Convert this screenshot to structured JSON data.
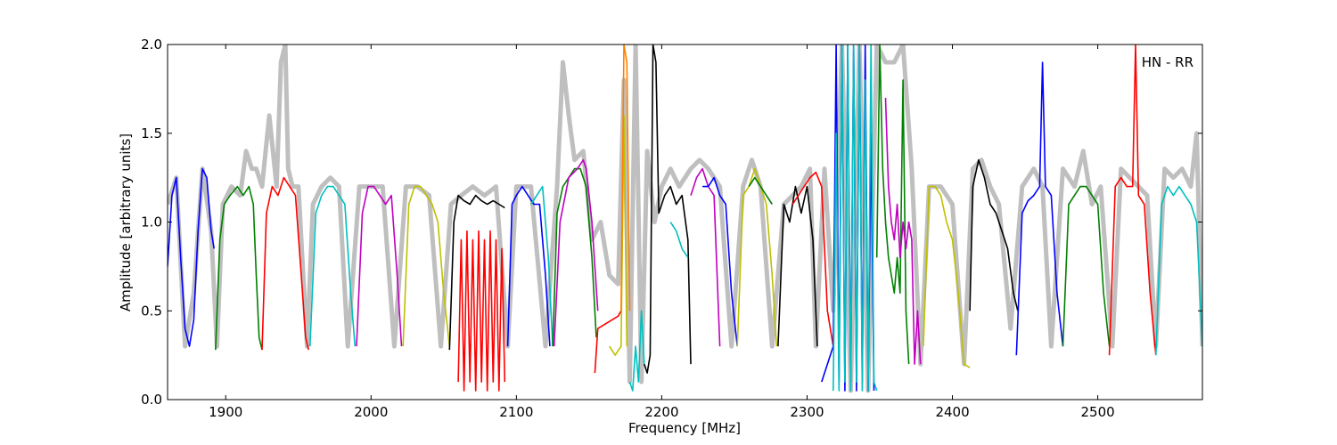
{
  "chart_data": {
    "type": "line",
    "xlabel": "Frequency [MHz]",
    "ylabel": "Amplitude [arbitrary units]",
    "annotation": "HN - RR",
    "xlim": [
      1860,
      2572
    ],
    "ylim": [
      0,
      2.0
    ],
    "xticks": [
      1900,
      2000,
      2100,
      2200,
      2300,
      2400,
      2500
    ],
    "yticks": [
      0.0,
      0.5,
      1.0,
      1.5,
      2.0
    ],
    "grid": false,
    "background_series": {
      "color": "#bfbfbf",
      "x": [
        1860,
        1866,
        1872,
        1878,
        1884,
        1890,
        1894,
        1898,
        1904,
        1910,
        1914,
        1918,
        1921,
        1925,
        1930,
        1935,
        1938,
        1941,
        1943,
        1946,
        1950,
        1956,
        1960,
        1966,
        1972,
        1978,
        1984,
        1992,
        2000,
        2008,
        2016,
        2024,
        2032,
        2040,
        2048,
        2055,
        2062,
        2070,
        2078,
        2086,
        2094,
        2100,
        2110,
        2120,
        2128,
        2132,
        2136,
        2140,
        2146,
        2152,
        2158,
        2164,
        2170,
        2174,
        2178,
        2182,
        2186,
        2190,
        2195,
        2200,
        2206,
        2212,
        2220,
        2226,
        2232,
        2240,
        2248,
        2256,
        2262,
        2268,
        2276,
        2284,
        2290,
        2296,
        2302,
        2306,
        2312,
        2318,
        2324,
        2330,
        2336,
        2342,
        2348,
        2354,
        2360,
        2366,
        2372,
        2378,
        2384,
        2392,
        2400,
        2408,
        2414,
        2420,
        2426,
        2432,
        2440,
        2448,
        2456,
        2462,
        2468,
        2476,
        2484,
        2490,
        2496,
        2502,
        2510,
        2516,
        2522,
        2528,
        2534,
        2540,
        2546,
        2552,
        2558,
        2564,
        2568,
        2572
      ],
      "y": [
        1.1,
        1.25,
        0.3,
        0.6,
        1.3,
        0.95,
        0.3,
        1.1,
        1.2,
        1.15,
        1.4,
        1.3,
        1.3,
        1.2,
        1.6,
        1.2,
        1.9,
        2.0,
        1.3,
        1.2,
        1.2,
        0.3,
        1.1,
        1.2,
        1.25,
        1.2,
        0.3,
        1.2,
        1.2,
        1.2,
        0.3,
        1.2,
        1.2,
        1.15,
        0.3,
        1.1,
        1.15,
        1.2,
        1.15,
        1.2,
        0.3,
        1.2,
        1.2,
        0.3,
        1.2,
        1.9,
        1.6,
        1.35,
        1.4,
        0.9,
        1.0,
        0.7,
        0.65,
        1.8,
        0.1,
        2.0,
        0.1,
        1.4,
        1.0,
        1.2,
        1.3,
        1.2,
        1.3,
        1.35,
        1.3,
        1.2,
        0.3,
        1.2,
        1.35,
        1.2,
        0.3,
        1.1,
        1.15,
        1.2,
        1.3,
        0.3,
        1.3,
        0.5,
        2.0,
        0.05,
        2.0,
        0.05,
        2.0,
        1.9,
        1.9,
        2.0,
        1.3,
        0.2,
        1.2,
        1.2,
        1.1,
        0.2,
        1.3,
        1.35,
        1.2,
        1.1,
        0.4,
        1.2,
        1.3,
        1.2,
        0.3,
        1.3,
        1.2,
        1.4,
        1.1,
        1.2,
        0.3,
        1.3,
        1.25,
        1.2,
        1.15,
        0.3,
        1.3,
        1.25,
        1.3,
        1.2,
        1.5,
        0.3
      ]
    },
    "series": [
      {
        "color": "#0000ff",
        "x": [
          1860,
          1863,
          1866,
          1869,
          1872,
          1875,
          1878,
          1881,
          1884,
          1887,
          1890,
          1892
        ],
        "y": [
          0.75,
          1.15,
          1.25,
          0.8,
          0.4,
          0.3,
          0.45,
          0.95,
          1.3,
          1.25,
          0.95,
          0.85
        ]
      },
      {
        "color": "#008000",
        "x": [
          1893,
          1896,
          1899,
          1903,
          1908,
          1912,
          1916,
          1919,
          1921,
          1923,
          1925
        ],
        "y": [
          0.28,
          0.9,
          1.1,
          1.15,
          1.2,
          1.15,
          1.2,
          1.1,
          0.7,
          0.35,
          0.28
        ]
      },
      {
        "color": "#ff0000",
        "x": [
          1925,
          1928,
          1932,
          1936,
          1940,
          1944,
          1948,
          1952,
          1955,
          1957
        ],
        "y": [
          0.28,
          1.05,
          1.2,
          1.15,
          1.25,
          1.2,
          1.15,
          0.7,
          0.35,
          0.28
        ]
      },
      {
        "color": "#00bfbf",
        "x": [
          1958,
          1962,
          1966,
          1970,
          1974,
          1978,
          1982,
          1986,
          1989
        ],
        "y": [
          0.3,
          1.05,
          1.15,
          1.2,
          1.2,
          1.15,
          1.1,
          0.6,
          0.3
        ]
      },
      {
        "color": "#bf00bf",
        "x": [
          1990,
          1994,
          1998,
          2002,
          2006,
          2010,
          2014,
          2018,
          2021
        ],
        "y": [
          0.3,
          1.05,
          1.2,
          1.2,
          1.15,
          1.1,
          1.15,
          0.7,
          0.3
        ]
      },
      {
        "color": "#bfbf00",
        "x": [
          2022,
          2026,
          2030,
          2034,
          2038,
          2042,
          2046,
          2050,
          2054
        ],
        "y": [
          0.3,
          1.1,
          1.2,
          1.2,
          1.15,
          1.1,
          1.0,
          0.6,
          0.3
        ]
      },
      {
        "color": "#000000",
        "x": [
          2054,
          2057,
          2060,
          2064,
          2068,
          2072,
          2076,
          2080,
          2084,
          2088,
          2092
        ],
        "y": [
          0.28,
          1.0,
          1.15,
          1.12,
          1.1,
          1.15,
          1.12,
          1.1,
          1.12,
          1.1,
          1.08
        ]
      },
      {
        "color": "#ff0000",
        "x": [
          2060,
          2062,
          2064,
          2066,
          2068,
          2070,
          2072,
          2074,
          2076,
          2078,
          2080,
          2082,
          2084,
          2086,
          2088,
          2090,
          2092
        ],
        "y": [
          0.1,
          0.9,
          0.05,
          0.95,
          0.1,
          0.9,
          0.05,
          0.95,
          0.1,
          0.9,
          0.05,
          0.95,
          0.1,
          0.9,
          0.05,
          0.85,
          0.1
        ]
      },
      {
        "color": "#0000ff",
        "x": [
          2094,
          2097,
          2100,
          2104,
          2108,
          2112,
          2116,
          2120,
          2123
        ],
        "y": [
          0.3,
          1.1,
          1.15,
          1.2,
          1.15,
          1.1,
          1.1,
          0.7,
          0.3
        ]
      },
      {
        "color": "#00bfbf",
        "x": [
          2110,
          2114,
          2118,
          2122,
          2125
        ],
        "y": [
          1.1,
          1.15,
          1.2,
          0.8,
          0.3
        ]
      },
      {
        "color": "#008000",
        "x": [
          2125,
          2128,
          2132,
          2136,
          2140,
          2144,
          2148,
          2152,
          2155
        ],
        "y": [
          0.3,
          1.05,
          1.2,
          1.25,
          1.3,
          1.3,
          1.2,
          0.8,
          0.35
        ]
      },
      {
        "color": "#bf00bf",
        "x": [
          2126,
          2130,
          2136,
          2142,
          2146,
          2148,
          2152,
          2156
        ],
        "y": [
          0.3,
          1.0,
          1.25,
          1.3,
          1.35,
          1.3,
          1.0,
          0.5
        ]
      },
      {
        "color": "#ff0000",
        "x": [
          2154,
          2156,
          2160,
          2166,
          2170,
          2172
        ],
        "y": [
          0.15,
          0.4,
          0.42,
          0.45,
          0.47,
          0.5
        ]
      },
      {
        "color": "#bfbf00",
        "x": [
          2164,
          2168,
          2172,
          2174,
          2176
        ],
        "y": [
          0.3,
          0.25,
          0.3,
          1.6,
          0.3
        ]
      },
      {
        "color": "#ff8000",
        "x": [
          2172,
          2174,
          2176,
          2178
        ],
        "y": [
          0.5,
          2.0,
          1.9,
          0.5
        ]
      },
      {
        "color": "#00bfbf",
        "x": [
          2178,
          2180,
          2182,
          2184,
          2186,
          2188
        ],
        "y": [
          0.1,
          0.05,
          0.3,
          0.1,
          0.5,
          0.2
        ]
      },
      {
        "color": "#000000",
        "x": [
          2188,
          2190,
          2192,
          2194,
          2196,
          2198,
          2202,
          2206,
          2210,
          2214,
          2218,
          2220
        ],
        "y": [
          0.2,
          0.15,
          0.25,
          2.0,
          1.9,
          1.05,
          1.15,
          1.2,
          1.1,
          1.15,
          0.9,
          0.2
        ]
      },
      {
        "color": "#00bfbf",
        "x": [
          2206,
          2210,
          2214,
          2218
        ],
        "y": [
          1.0,
          0.95,
          0.85,
          0.8
        ]
      },
      {
        "color": "#bf00bf",
        "x": [
          2220,
          2224,
          2228,
          2232,
          2236,
          2240
        ],
        "y": [
          1.15,
          1.25,
          1.3,
          1.2,
          1.15,
          0.3
        ]
      },
      {
        "color": "#0000ff",
        "x": [
          2228,
          2232,
          2236,
          2240,
          2244,
          2248,
          2252
        ],
        "y": [
          1.2,
          1.2,
          1.25,
          1.15,
          1.1,
          0.6,
          0.3
        ]
      },
      {
        "color": "#bfbf00",
        "x": [
          2252,
          2256,
          2260,
          2264,
          2268,
          2272,
          2276,
          2279
        ],
        "y": [
          0.3,
          1.15,
          1.2,
          1.3,
          1.2,
          1.1,
          0.7,
          0.3
        ]
      },
      {
        "color": "#008000",
        "x": [
          2260,
          2264,
          2268,
          2272,
          2276
        ],
        "y": [
          1.2,
          1.25,
          1.2,
          1.15,
          1.1
        ]
      },
      {
        "color": "#000000",
        "x": [
          2280,
          2284,
          2288,
          2292,
          2296,
          2300,
          2304,
          2307
        ],
        "y": [
          0.3,
          1.1,
          1.0,
          1.2,
          1.05,
          1.2,
          0.9,
          0.3
        ]
      },
      {
        "color": "#ff0000",
        "x": [
          2290,
          2294,
          2298,
          2302,
          2306,
          2310,
          2314,
          2318
        ],
        "y": [
          1.1,
          1.15,
          1.2,
          1.25,
          1.28,
          1.2,
          0.5,
          0.3
        ]
      },
      {
        "color": "#0000ff",
        "x": [
          2310,
          2314,
          2318,
          2320,
          2322,
          2324,
          2326,
          2328,
          2330,
          2332,
          2334,
          2336,
          2338,
          2340,
          2342,
          2344,
          2346
        ],
        "y": [
          0.1,
          0.2,
          0.3,
          2.0,
          0.1,
          2.0,
          0.05,
          2.0,
          0.1,
          2.0,
          0.05,
          2.0,
          0.1,
          2.0,
          0.05,
          1.5,
          0.05
        ]
      },
      {
        "color": "#00bfbf",
        "x": [
          2318,
          2320,
          2322,
          2324,
          2326,
          2328,
          2330,
          2332,
          2334,
          2336,
          2338,
          2340,
          2342,
          2344,
          2346,
          2348
        ],
        "y": [
          0.05,
          1.5,
          0.05,
          2.0,
          0.1,
          2.0,
          0.05,
          2.0,
          0.1,
          2.0,
          0.05,
          1.8,
          0.05,
          2.0,
          0.1,
          0.05
        ]
      },
      {
        "color": "#008000",
        "x": [
          2348,
          2350,
          2352,
          2354,
          2356,
          2358,
          2360,
          2362,
          2364,
          2366,
          2368,
          2370
        ],
        "y": [
          0.8,
          2.0,
          1.3,
          1.0,
          0.8,
          0.7,
          0.6,
          0.8,
          0.6,
          1.8,
          0.5,
          0.2
        ]
      },
      {
        "color": "#bf00bf",
        "x": [
          2354,
          2356,
          2358,
          2360,
          2362,
          2364,
          2366,
          2368,
          2370,
          2372,
          2374,
          2376,
          2378
        ],
        "y": [
          1.7,
          1.2,
          1.0,
          0.9,
          1.1,
          0.8,
          1.0,
          0.85,
          1.0,
          0.9,
          0.2,
          0.5,
          0.2
        ]
      },
      {
        "color": "#bfbf00",
        "x": [
          2380,
          2384,
          2388,
          2392,
          2396,
          2400,
          2404,
          2408,
          2412
        ],
        "y": [
          0.3,
          1.2,
          1.2,
          1.15,
          1.0,
          0.9,
          0.6,
          0.2,
          0.18
        ]
      },
      {
        "color": "#000000",
        "x": [
          2412,
          2414,
          2418,
          2422,
          2426,
          2430,
          2434,
          2438,
          2442,
          2445
        ],
        "y": [
          0.5,
          1.2,
          1.35,
          1.25,
          1.1,
          1.05,
          0.95,
          0.85,
          0.6,
          0.5
        ]
      },
      {
        "color": "#0000ff",
        "x": [
          2444,
          2448,
          2452,
          2456,
          2460,
          2462,
          2464,
          2468,
          2472,
          2476
        ],
        "y": [
          0.25,
          1.05,
          1.12,
          1.15,
          1.2,
          1.9,
          1.2,
          1.15,
          0.6,
          0.3
        ]
      },
      {
        "color": "#008000",
        "x": [
          2476,
          2480,
          2484,
          2488,
          2492,
          2496,
          2500,
          2504,
          2508
        ],
        "y": [
          0.3,
          1.1,
          1.15,
          1.2,
          1.2,
          1.15,
          1.1,
          0.6,
          0.3
        ]
      },
      {
        "color": "#ff0000",
        "x": [
          2508,
          2512,
          2516,
          2520,
          2524,
          2526,
          2528,
          2532,
          2536,
          2540
        ],
        "y": [
          0.25,
          1.2,
          1.25,
          1.2,
          1.2,
          2.0,
          1.15,
          1.1,
          0.6,
          0.25
        ]
      },
      {
        "color": "#00bfbf",
        "x": [
          2540,
          2544,
          2548,
          2552,
          2556,
          2560,
          2564,
          2568,
          2572
        ],
        "y": [
          0.25,
          1.1,
          1.2,
          1.15,
          1.2,
          1.15,
          1.1,
          1.0,
          0.3
        ]
      }
    ]
  }
}
